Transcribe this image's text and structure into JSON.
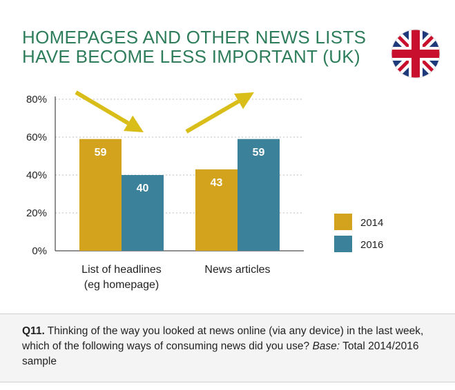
{
  "title_lines": [
    "HOMEPAGES AND OTHER NEWS LISTS",
    "HAVE BECOME LESS IMPORTANT (UK)"
  ],
  "colors": {
    "title": "#2e7d5b",
    "series_2014": "#d4a31e",
    "series_2016": "#3a8199",
    "arrow": "#d9bd18",
    "grid": "#bdbdbd"
  },
  "flag_icon": "union-jack-flag",
  "chart_data": {
    "type": "bar",
    "title": "HOMEPAGES AND OTHER NEWS LISTS HAVE BECOME LESS IMPORTANT (UK)",
    "categories": [
      [
        "List of headlines",
        "(eg homepage)"
      ],
      [
        "News articles"
      ]
    ],
    "series": [
      {
        "name": "2014",
        "values": [
          59,
          43
        ]
      },
      {
        "name": "2016",
        "values": [
          40,
          59
        ]
      }
    ],
    "ylim": [
      0,
      80
    ],
    "yticks": [
      0,
      20,
      40,
      60,
      80
    ],
    "ytick_labels": [
      "0%",
      "20%",
      "40%",
      "60%",
      "80%"
    ],
    "grid": "dotted horizontal",
    "legend_position": "right",
    "annotations": [
      "downward arrow over List of headlines",
      "upward arrow over News articles"
    ]
  },
  "note": {
    "label": "Q11.",
    "text": " Thinking of the way you looked at news online (via any device) in the last week, which of the following ways of consuming news did you use? ",
    "base_label": "Base:",
    "base_text": " Total 2014/2016 sample"
  }
}
